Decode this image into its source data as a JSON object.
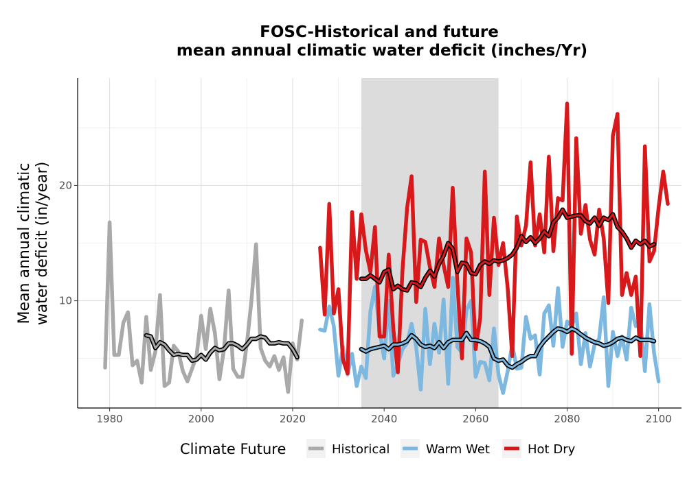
{
  "chart_data": {
    "type": "line",
    "title": [
      "FOSC-Historical and future",
      "mean annual climatic water deficit (inches/Yr)"
    ],
    "ylabel": [
      "Mean annual climatic",
      "water deficit (in/year)"
    ],
    "xlim": [
      1973,
      2105
    ],
    "ylim": [
      0.7,
      29.3
    ],
    "x_ticks": [
      1980,
      2000,
      2020,
      2040,
      2060,
      2080,
      2100
    ],
    "y_ticks": [
      10,
      20
    ],
    "grid": true,
    "shaded_period": [
      2035,
      2065
    ],
    "shade_color": "#dcdcdc",
    "legend": {
      "title": "Climate Future",
      "position": "bottom",
      "entries": [
        {
          "label": "Historical",
          "color": "#a9a9a9"
        },
        {
          "label": "Warm Wet",
          "color": "#7cb8e0"
        },
        {
          "label": "Hot Dry",
          "color": "#d7191c"
        }
      ]
    },
    "series": [
      {
        "name": "Historical",
        "color": "#a9a9a9",
        "x_start": 1979,
        "values": [
          4.2,
          16.8,
          5.3,
          5.3,
          8.1,
          9.0,
          4.4,
          4.8,
          2.9,
          8.6,
          4.0,
          5.6,
          10.5,
          2.6,
          2.9,
          6.1,
          5.6,
          3.9,
          3.0,
          4.1,
          5.2,
          8.7,
          5.8,
          9.3,
          7.2,
          3.2,
          5.8,
          10.9,
          4.1,
          3.4,
          3.4,
          6.3,
          10.0,
          14.9,
          5.9,
          4.8,
          4.3,
          5.2,
          4.0,
          5.1,
          2.1,
          6.3,
          4.9,
          8.3
        ]
      },
      {
        "name": "Warm Wet",
        "color": "#7cb8e0",
        "x_start": 2026,
        "values": [
          7.5,
          7.4,
          9.5,
          7.8,
          3.5,
          6.0,
          3.6,
          5.4,
          2.6,
          4.3,
          3.3,
          9.1,
          11.2,
          7.4,
          5.0,
          10.0,
          3.5,
          4.5,
          5.8,
          6.3,
          8.0,
          6.0,
          2.3,
          9.3,
          4.5,
          8.0,
          5.5,
          10.1,
          2.8,
          12.0,
          6.0,
          5.5,
          9.2,
          10.0,
          3.4,
          4.7,
          4.6,
          3.1,
          7.6,
          3.6,
          2.0,
          3.9,
          6.2,
          4.1,
          4.2,
          8.6,
          6.7,
          7.0,
          3.6,
          8.9,
          9.6,
          6.1,
          11.1,
          6.0,
          8.2,
          7.8,
          8.9,
          4.5,
          7.2,
          4.3,
          6.2,
          6.7,
          10.3,
          2.6,
          7.3,
          5.2,
          6.9,
          4.9,
          9.4,
          7.8,
          8.3,
          3.9,
          9.7,
          5.5,
          3.0
        ]
      },
      {
        "name": "Hot Dry",
        "color": "#d7191c",
        "x_start": 2026,
        "values": [
          14.6,
          8.8,
          18.4,
          8.9,
          11.0,
          4.9,
          3.7,
          17.7,
          11.9,
          17.5,
          14.4,
          12.5,
          16.4,
          6.9,
          6.9,
          14.0,
          7.6,
          3.8,
          12.6,
          18.0,
          20.8,
          9.9,
          15.3,
          15.1,
          12.9,
          11.2,
          15.4,
          13.1,
          11.2,
          19.8,
          11.6,
          5.0,
          15.4,
          14.2,
          5.8,
          8.5,
          21.2,
          10.5,
          17.2,
          13.1,
          15.0,
          11.1,
          5.2,
          17.3,
          14.8,
          16.5,
          22.0,
          14.8,
          17.5,
          14.2,
          22.5,
          14.3,
          18.9,
          18.7,
          27.1,
          5.4,
          24.1,
          15.8,
          18.3,
          15.3,
          14.0,
          17.9,
          15.4,
          9.8,
          24.3,
          26.2,
          10.5,
          12.4,
          10.5,
          12.1,
          5.2,
          23.4,
          13.4,
          14.3,
          18.1,
          21.2,
          18.4
        ]
      }
    ],
    "moving_averages": [
      {
        "name": "Historical",
        "x_start": 1988,
        "values": [
          7.0,
          6.9,
          5.9,
          6.4,
          6.2,
          5.7,
          5.3,
          5.4,
          5.3,
          5.3,
          4.8,
          4.9,
          5.3,
          4.9,
          5.5,
          5.9,
          5.7,
          5.8,
          6.3,
          6.3,
          6.1,
          5.8,
          6.2,
          6.7,
          6.7,
          6.9,
          6.8,
          6.3,
          6.3,
          6.4,
          6.3,
          6.3,
          5.8,
          5.1
        ]
      },
      {
        "name": "Warm Wet",
        "x_start": 2035,
        "values": [
          5.8,
          5.6,
          5.8,
          5.9,
          6.0,
          6.1,
          5.8,
          6.2,
          6.2,
          6.3,
          6.5,
          7.0,
          6.7,
          6.2,
          6.0,
          6.1,
          5.9,
          6.4,
          5.9,
          6.4,
          6.6,
          6.6,
          6.6,
          7.2,
          6.6,
          6.6,
          6.5,
          6.3,
          6.0,
          5.0,
          4.8,
          4.9,
          4.4,
          4.2,
          4.5,
          4.7,
          5.0,
          5.2,
          5.2,
          6.0,
          6.5,
          6.9,
          7.3,
          7.6,
          7.5,
          7.3,
          7.6,
          7.4,
          7.1,
          6.8,
          6.6,
          6.4,
          6.3,
          6.1,
          6.2,
          6.4,
          6.7,
          6.8,
          6.6,
          6.5,
          6.8,
          6.6,
          6.6,
          6.6,
          6.5
        ]
      },
      {
        "name": "Hot Dry",
        "x_start": 2035,
        "values": [
          11.9,
          11.9,
          12.2,
          11.9,
          11.6,
          12.5,
          12.7,
          11.0,
          11.3,
          11.0,
          10.9,
          11.6,
          11.5,
          11.2,
          12.0,
          12.6,
          12.1,
          13.2,
          13.9,
          15.0,
          14.5,
          12.5,
          13.3,
          13.2,
          12.4,
          12.3,
          13.1,
          13.4,
          13.2,
          13.5,
          13.4,
          13.5,
          13.7,
          14.0,
          14.6,
          15.6,
          15.1,
          15.5,
          15.0,
          15.4,
          16.0,
          15.6,
          16.8,
          17.2,
          17.9,
          17.2,
          17.3,
          17.4,
          17.4,
          16.9,
          16.7,
          17.2,
          16.5,
          17.2,
          17.0,
          17.5,
          16.4,
          16.0,
          15.4,
          14.6,
          15.2,
          14.9,
          15.2,
          14.7,
          14.9
        ]
      }
    ]
  }
}
